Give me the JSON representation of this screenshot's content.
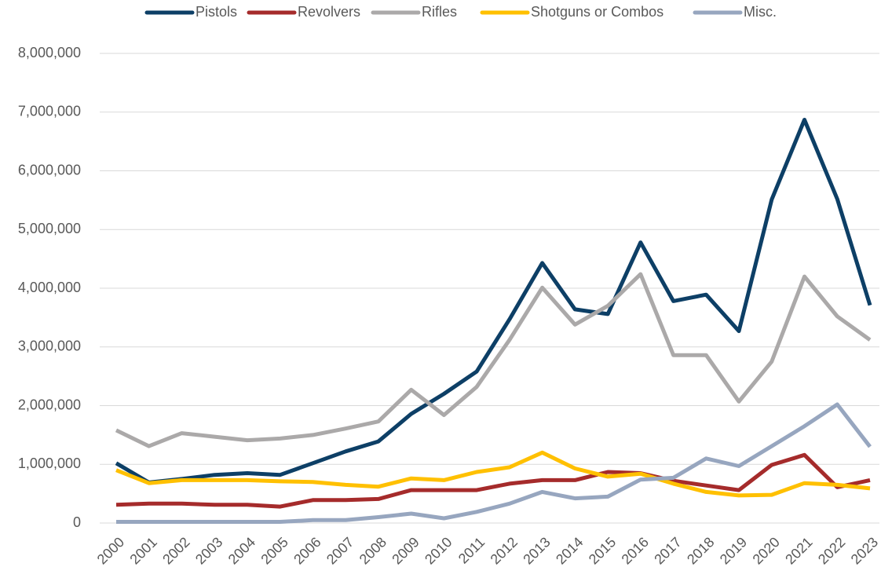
{
  "chart_data": {
    "type": "line",
    "categories": [
      "2000",
      "2001",
      "2002",
      "2003",
      "2004",
      "2005",
      "2006",
      "2007",
      "2008",
      "2009",
      "2010",
      "2011",
      "2012",
      "2013",
      "2014",
      "2015",
      "2016",
      "2017",
      "2018",
      "2019",
      "2020",
      "2021",
      "2022",
      "2023"
    ],
    "series": [
      {
        "name": "Pistols",
        "color": "#0d3f66",
        "values": [
          1020000,
          690000,
          750000,
          820000,
          850000,
          820000,
          1020000,
          1220000,
          1390000,
          1860000,
          2200000,
          2580000,
          3470000,
          4430000,
          3640000,
          3560000,
          4780000,
          3780000,
          3890000,
          3270000,
          5510000,
          6870000,
          5520000,
          3710000
        ]
      },
      {
        "name": "Revolvers",
        "color": "#a52b2b",
        "values": [
          310000,
          330000,
          330000,
          310000,
          310000,
          280000,
          390000,
          390000,
          410000,
          560000,
          560000,
          560000,
          670000,
          730000,
          730000,
          870000,
          850000,
          720000,
          640000,
          560000,
          990000,
          1160000,
          610000,
          730000
        ]
      },
      {
        "name": "Rifles",
        "color": "#aba9a9",
        "values": [
          1580000,
          1310000,
          1530000,
          1470000,
          1410000,
          1440000,
          1500000,
          1610000,
          1730000,
          2270000,
          1840000,
          2320000,
          3120000,
          4010000,
          3380000,
          3700000,
          4240000,
          2860000,
          2860000,
          2070000,
          2750000,
          4200000,
          3520000,
          3120000
        ]
      },
      {
        "name": "Shotguns or Combos",
        "color": "#ffc000",
        "values": [
          900000,
          680000,
          730000,
          730000,
          730000,
          710000,
          700000,
          650000,
          620000,
          760000,
          730000,
          870000,
          950000,
          1200000,
          930000,
          790000,
          840000,
          670000,
          530000,
          470000,
          480000,
          680000,
          650000,
          590000
        ]
      },
      {
        "name": "Misc.",
        "color": "#97a6bf",
        "values": [
          20000,
          20000,
          20000,
          20000,
          20000,
          20000,
          50000,
          50000,
          100000,
          160000,
          80000,
          190000,
          330000,
          530000,
          420000,
          450000,
          740000,
          770000,
          1100000,
          970000,
          1310000,
          1650000,
          2020000,
          1300000
        ]
      }
    ],
    "ylim": [
      0,
      8000000
    ],
    "yticks": [
      0,
      {
        "value": 1000000,
        "label": "1,000,000"
      },
      {
        "value": 2000000,
        "label": "2,000,000"
      },
      {
        "value": 3000000,
        "label": "3,000,000"
      },
      {
        "value": 4000000,
        "label": "4,000,000"
      },
      {
        "value": 5000000,
        "label": "5,000,000"
      },
      {
        "value": 6000000,
        "label": "6,000,000"
      },
      {
        "value": 7000000,
        "label": "7,000,000"
      },
      {
        "value": 8000000,
        "label": "8,000,000"
      }
    ],
    "grid": true,
    "legend": "top"
  }
}
